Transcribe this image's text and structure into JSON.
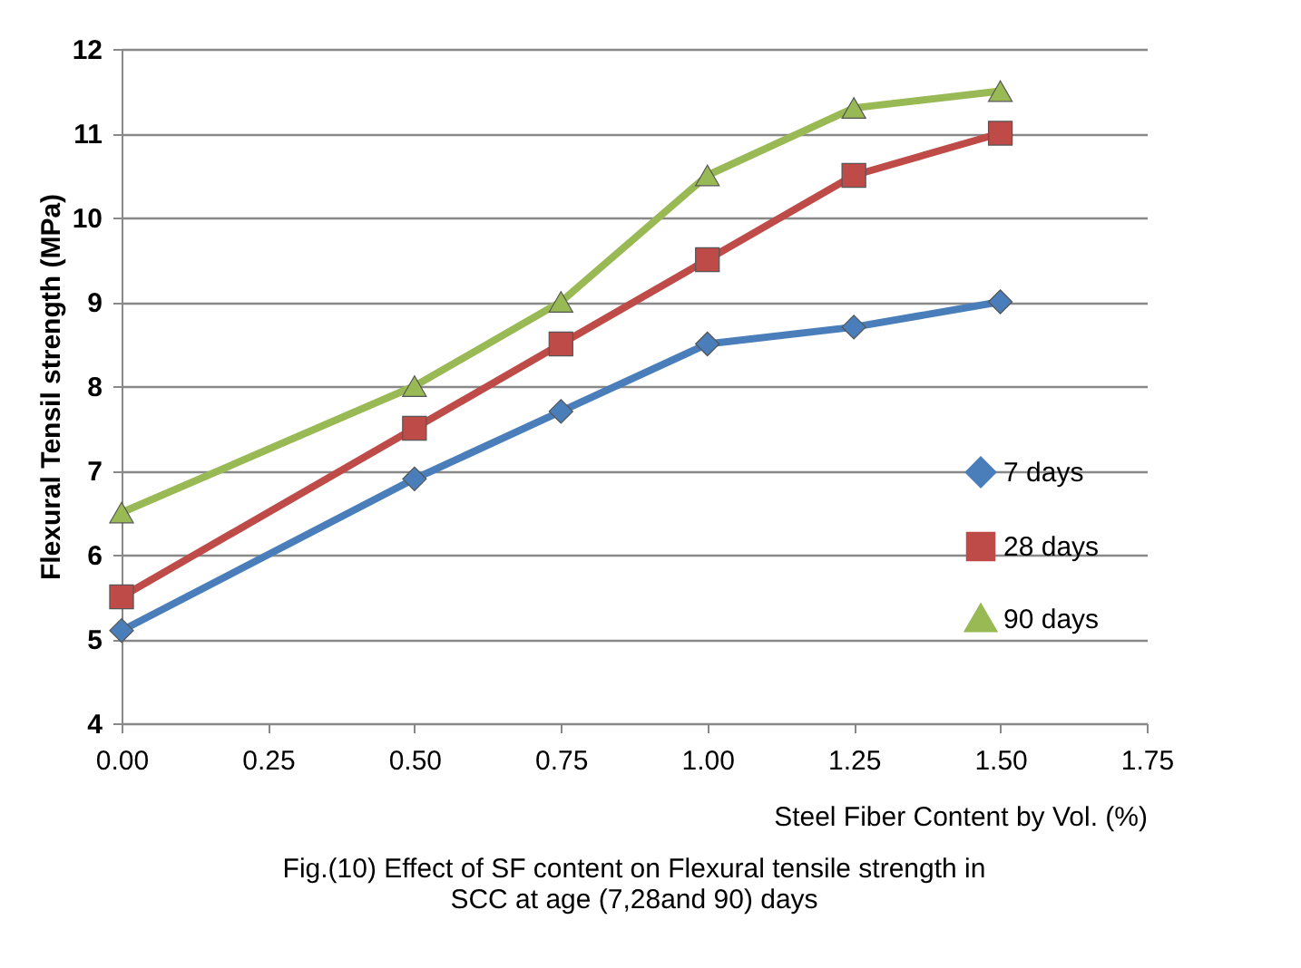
{
  "chart_data": {
    "type": "line",
    "xlabel": "Steel Fiber Content  by Vol. (%)",
    "ylabel": "Flexural Tensil strength (MPa)",
    "x": [
      0,
      0.5,
      0.75,
      1.0,
      1.25,
      1.5
    ],
    "series": [
      {
        "name": "7 days",
        "color": "#4a7ebb",
        "marker": "diamond",
        "values": [
          5.1,
          6.9,
          7.7,
          8.5,
          8.7,
          9.0
        ]
      },
      {
        "name": "28 days",
        "color": "#be4b48",
        "marker": "square",
        "values": [
          5.5,
          7.5,
          8.5,
          9.5,
          10.5,
          11.0
        ]
      },
      {
        "name": "90 days",
        "color": "#98b954",
        "marker": "triangle",
        "values": [
          6.5,
          8.0,
          9.0,
          10.5,
          11.3,
          11.5
        ]
      }
    ],
    "xlim": [
      0,
      1.75
    ],
    "xticks": [
      {
        "value": 0,
        "label": "0.00"
      },
      {
        "value": 0.25,
        "label": "0.25"
      },
      {
        "value": 0.5,
        "label": "0.50"
      },
      {
        "value": 0.75,
        "label": "0.75"
      },
      {
        "value": 1.0,
        "label": "1.00"
      },
      {
        "value": 1.25,
        "label": "1.25"
      },
      {
        "value": 1.5,
        "label": "1.50"
      },
      {
        "value": 1.75,
        "label": "1.75"
      }
    ],
    "ylim": [
      4,
      12
    ],
    "yticks": [
      4,
      5,
      6,
      7,
      8,
      9,
      10,
      11,
      12
    ],
    "grid": "y",
    "legend": "right",
    "line_style": "solid",
    "annotations": [
      "Fig.(10) Effect of  SF content on Flexural tensile  strength in",
      "SCC at age (7,28and 90) days"
    ]
  }
}
